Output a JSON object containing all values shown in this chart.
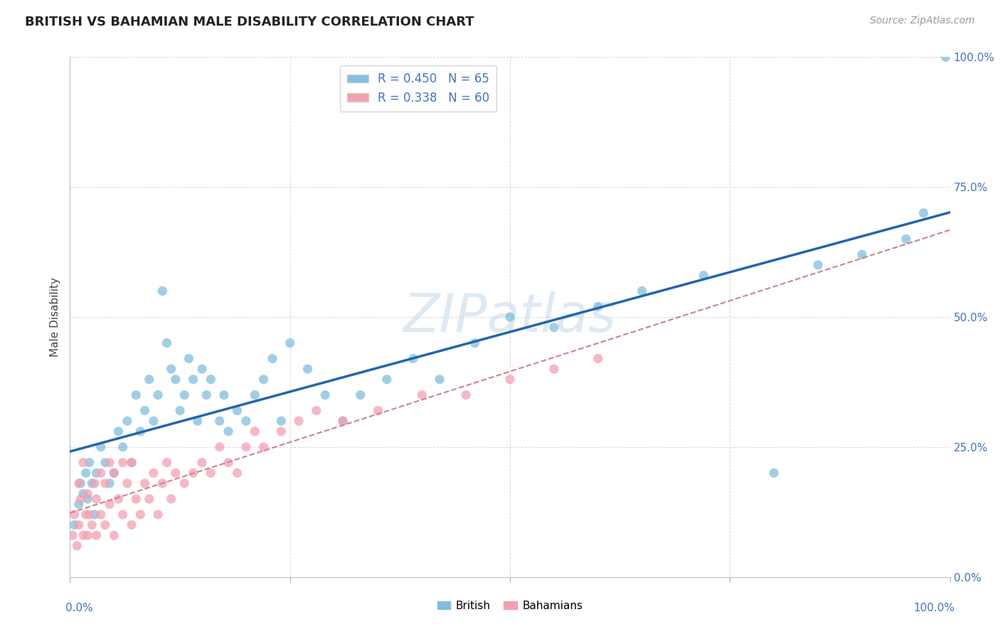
{
  "title": "BRITISH VS BAHAMIAN MALE DISABILITY CORRELATION CHART",
  "source": "Source: ZipAtlas.com",
  "ylabel": "Male Disability",
  "ytick_labels": [
    "0.0%",
    "25.0%",
    "50.0%",
    "75.0%",
    "100.0%"
  ],
  "ytick_values": [
    0,
    25,
    50,
    75,
    100
  ],
  "xlim": [
    0,
    100
  ],
  "ylim": [
    0,
    100
  ],
  "watermark": "ZIPatlas",
  "legend_british": "R = 0.450   N = 65",
  "legend_bahamians": "R = 0.338   N = 60",
  "british_color": "#7fbfdf",
  "bahamian_color": "#f4a0b0",
  "british_line_color": "#2166ac",
  "bahamian_line_color": "#d08090",
  "title_color": "#222222",
  "axis_label_color": "#4472c4",
  "british_scatter_x": [
    0.5,
    1.0,
    1.2,
    1.5,
    1.8,
    2.0,
    2.2,
    2.5,
    2.8,
    3.0,
    3.5,
    4.0,
    4.5,
    5.0,
    5.5,
    6.0,
    6.5,
    7.0,
    7.5,
    8.0,
    8.5,
    9.0,
    9.5,
    10.0,
    10.5,
    11.0,
    11.5,
    12.0,
    12.5,
    13.0,
    13.5,
    14.0,
    14.5,
    15.0,
    15.5,
    16.0,
    17.0,
    17.5,
    18.0,
    19.0,
    20.0,
    21.0,
    22.0,
    23.0,
    24.0,
    25.0,
    27.0,
    29.0,
    31.0,
    33.0,
    36.0,
    39.0,
    42.0,
    46.0,
    50.0,
    55.0,
    60.0,
    65.0,
    72.0,
    80.0,
    85.0,
    90.0,
    95.0,
    97.0,
    99.5
  ],
  "british_scatter_y": [
    10,
    14,
    18,
    16,
    20,
    15,
    22,
    18,
    12,
    20,
    25,
    22,
    18,
    20,
    28,
    25,
    30,
    22,
    35,
    28,
    32,
    38,
    30,
    35,
    55,
    45,
    40,
    38,
    32,
    35,
    42,
    38,
    30,
    40,
    35,
    38,
    30,
    35,
    28,
    32,
    30,
    35,
    38,
    42,
    30,
    45,
    40,
    35,
    30,
    35,
    38,
    42,
    38,
    45,
    50,
    48,
    52,
    55,
    58,
    20,
    60,
    62,
    65,
    70,
    100
  ],
  "british_scatter_y_outlier_idx": 19,
  "bahamian_scatter_x": [
    0.3,
    0.5,
    0.8,
    1.0,
    1.0,
    1.2,
    1.5,
    1.5,
    1.8,
    2.0,
    2.0,
    2.2,
    2.5,
    2.8,
    3.0,
    3.0,
    3.5,
    3.5,
    4.0,
    4.0,
    4.5,
    4.5,
    5.0,
    5.0,
    5.5,
    6.0,
    6.0,
    6.5,
    7.0,
    7.0,
    7.5,
    8.0,
    8.5,
    9.0,
    9.5,
    10.0,
    10.5,
    11.0,
    11.5,
    12.0,
    13.0,
    14.0,
    15.0,
    16.0,
    17.0,
    18.0,
    19.0,
    20.0,
    21.0,
    22.0,
    24.0,
    26.0,
    28.0,
    31.0,
    35.0,
    40.0,
    45.0,
    50.0,
    55.0,
    60.0
  ],
  "bahamian_scatter_y": [
    8,
    12,
    6,
    10,
    18,
    15,
    8,
    22,
    12,
    8,
    16,
    12,
    10,
    18,
    8,
    15,
    12,
    20,
    10,
    18,
    14,
    22,
    8,
    20,
    15,
    12,
    22,
    18,
    10,
    22,
    15,
    12,
    18,
    15,
    20,
    12,
    18,
    22,
    15,
    20,
    18,
    20,
    22,
    20,
    25,
    22,
    20,
    25,
    28,
    25,
    28,
    30,
    32,
    30,
    32,
    35,
    35,
    38,
    40,
    42
  ]
}
